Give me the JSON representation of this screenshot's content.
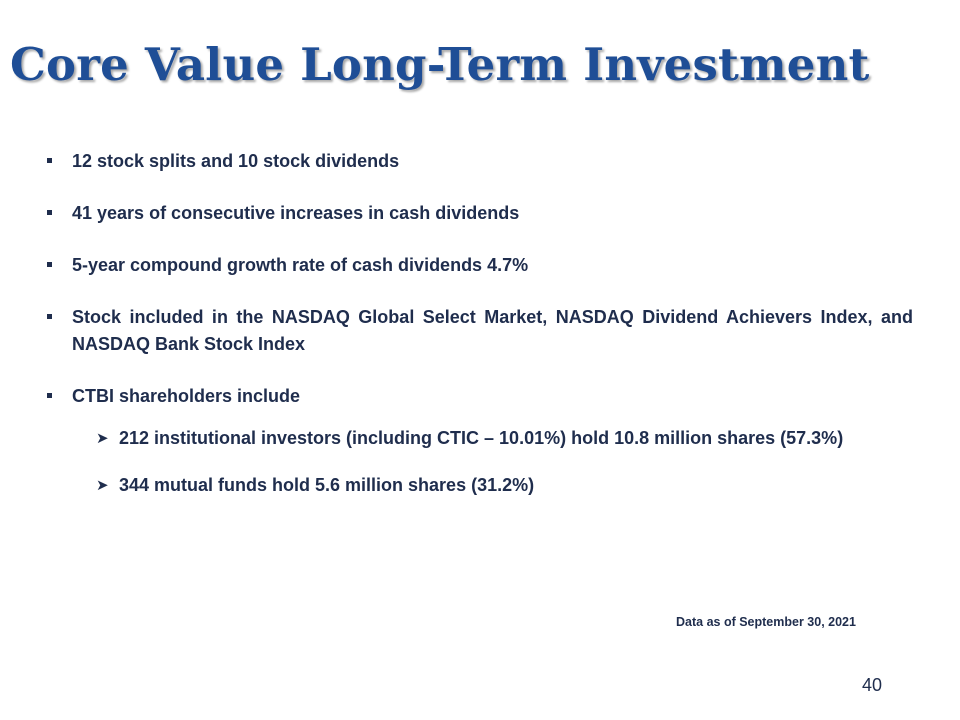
{
  "slide": {
    "title": "Core Value Long-Term Investment",
    "bullets": [
      "12 stock splits and 10 stock dividends",
      "41 years of consecutive increases in cash dividends",
      "5-year compound growth rate of cash dividends 4.7%",
      "Stock included in the NASDAQ Global Select Market, NASDAQ Dividend Achievers Index, and NASDAQ  Bank Stock Index",
      "CTBI shareholders include"
    ],
    "sub_bullets": [
      "212 institutional investors (including CTIC – 10.01%) hold 10.8 million shares (57.3%)",
      "344 mutual funds hold 5.6 million  shares (31.2%)"
    ],
    "footnote": "Data as of September 30, 2021",
    "page_number": "40",
    "markers": {
      "bullet_icon": "square-bullet-icon",
      "sub_bullet_icon": "arrow-bullet-icon"
    },
    "colors": {
      "title": "#1f4e96",
      "text": "#1f2d4d"
    }
  }
}
